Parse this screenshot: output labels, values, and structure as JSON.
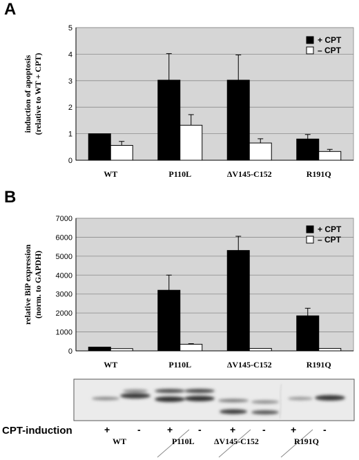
{
  "panels": {
    "a_letter": "A",
    "b_letter": "B"
  },
  "chart_data": [
    {
      "type": "bar",
      "panel": "A",
      "title": "",
      "ylabel": "induction of apoptosis",
      "ylabel2": "(relative to WT + CPT)",
      "xlabel": "",
      "categories": [
        "WT",
        "P110L",
        "ΔV145-C152",
        "R191Q"
      ],
      "ylim": [
        0,
        5
      ],
      "yticks": [
        0,
        1,
        2,
        3,
        4,
        5
      ],
      "grid": true,
      "legend": "top-right",
      "series": [
        {
          "name": "+  CPT",
          "color": "#000000",
          "values": [
            1.0,
            3.02,
            3.02,
            0.8
          ],
          "errors": [
            0.0,
            1.0,
            0.95,
            0.17
          ]
        },
        {
          "name": "–  CPT",
          "color": "#ffffff",
          "values": [
            0.56,
            1.32,
            0.65,
            0.33
          ],
          "errors": [
            0.15,
            0.4,
            0.16,
            0.08
          ]
        }
      ]
    },
    {
      "type": "bar",
      "panel": "B",
      "title": "",
      "ylabel": "relative BiP expression",
      "ylabel2": "(norm. to GAPDH)",
      "xlabel": "",
      "categories": [
        "WT",
        "P110L",
        "ΔV145-C152",
        "R191Q"
      ],
      "ylim": [
        0,
        7000
      ],
      "yticks": [
        0,
        1000,
        2000,
        3000,
        4000,
        5000,
        6000,
        7000
      ],
      "grid": true,
      "legend": "top-right",
      "series": [
        {
          "name": "+  CPT",
          "color": "#000000",
          "values": [
            200,
            3200,
            5300,
            1850
          ],
          "errors": [
            0,
            800,
            750,
            400
          ]
        },
        {
          "name": "–  CPT",
          "color": "#ffffff",
          "values": [
            120,
            350,
            130,
            130
          ],
          "errors": [
            0,
            30,
            0,
            0
          ]
        }
      ]
    }
  ],
  "blot": {
    "row_label": "CPT-induction",
    "signs": [
      "+",
      "-",
      "+",
      "-",
      "+",
      "-",
      "+",
      "-"
    ],
    "groups": [
      "WT",
      "P110L",
      "ΔV145-C152",
      "R191Q"
    ]
  }
}
